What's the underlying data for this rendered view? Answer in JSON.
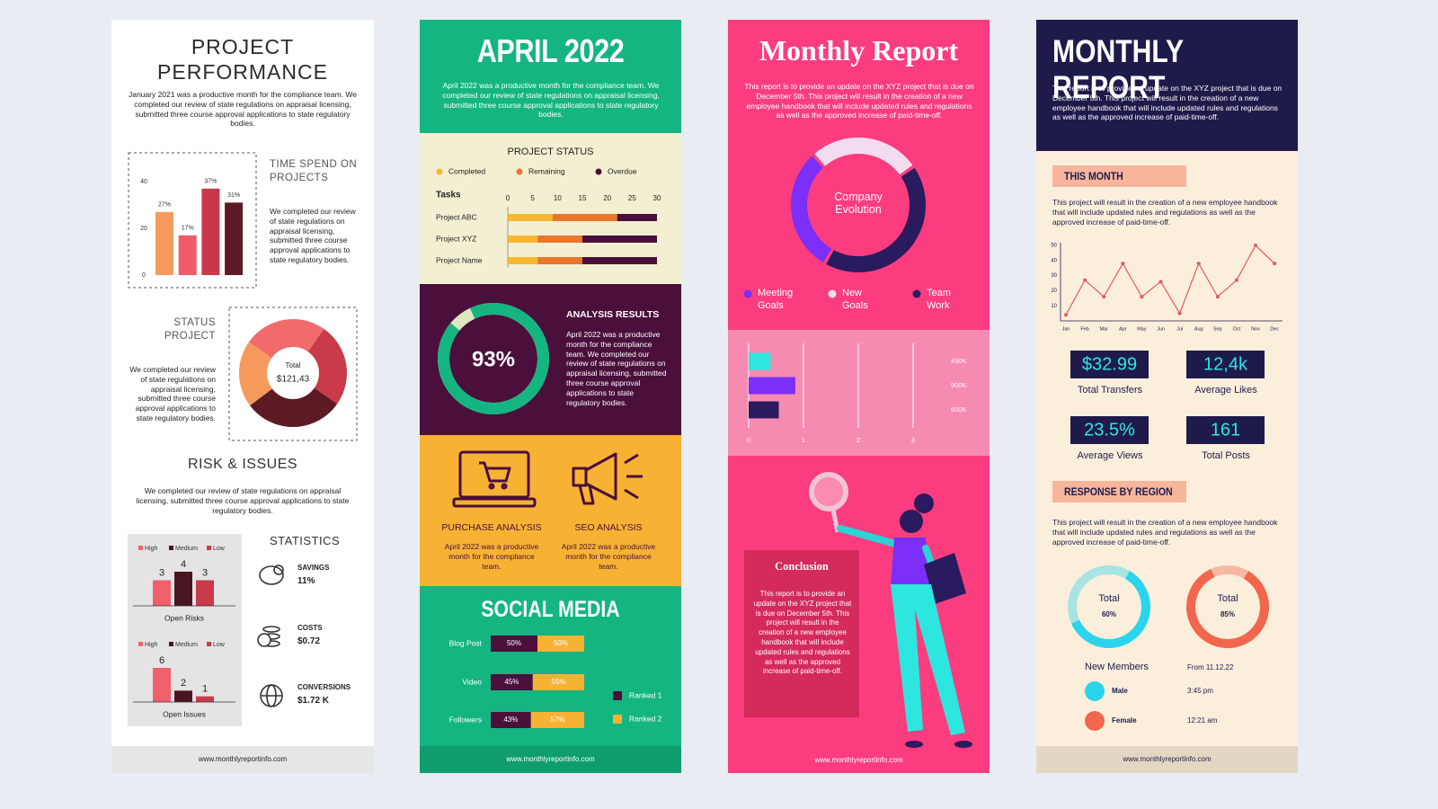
{
  "panels": [
    {
      "title": "PROJECT PERFORMANCE",
      "intro": "January 2021 was a productive month for the compliance team. We completed our review of state regulations on appraisal licensing, submitted three course approval applications to state regulatory bodies.",
      "time_chart": {
        "title": "TIME SPEND ON PROJECTS",
        "text": "We completed our review of state regulations on appraisal licensing, submitted three course approval applications to state regulatory bodies.",
        "values": [
          27,
          17,
          37,
          31
        ],
        "value_labels": [
          "27%",
          "17%",
          "37%",
          "31%"
        ],
        "colors": [
          "#f59a5c",
          "#f05b68",
          "#c7384a",
          "#5b1a24"
        ],
        "ylim": [
          0,
          40
        ],
        "yticks": [
          0,
          20,
          40
        ]
      },
      "status_chart": {
        "title": "STATUS PROJECT",
        "text": "We completed our review of state regulations on appraisal licensing, submitted three course approval applications to state regulatory bodies.",
        "center_label": "Total",
        "center_value": "$121,43",
        "values": [
          25,
          25,
          30,
          20
        ],
        "colors": [
          "#f26b6b",
          "#c93a4a",
          "#5b1a24",
          "#f59a5c"
        ]
      },
      "risk_title": "RISK & ISSUES",
      "risk_text": "We completed our review of state regulations on appraisal licensing, submitted three course approval applications to state regulatory bodies.",
      "risk_charts": [
        {
          "categories": [
            "High",
            "Medium",
            "Low"
          ],
          "colors": [
            "#f0606a",
            "#4a1520",
            "#c93a4a"
          ],
          "values": [
            3,
            4,
            3
          ],
          "label": "Open Risks"
        },
        {
          "categories": [
            "High",
            "Medium",
            "Low"
          ],
          "colors": [
            "#f0606a",
            "#4a1520",
            "#c93a4a"
          ],
          "values": [
            6,
            2,
            1
          ],
          "label": "Open Issues"
        }
      ],
      "statistics": {
        "title": "STATISTICS",
        "items": [
          {
            "label": "SAVINGS",
            "value": "11%"
          },
          {
            "label": "COSTS",
            "value": "$0.72"
          },
          {
            "label": "CONVERSIONS",
            "value": "$1.72 K"
          }
        ]
      },
      "footer": "www.monthlyreportinfo.com"
    },
    {
      "title": "APRIL 2022",
      "intro": "April 2022 was a productive month for the compliance team. We completed our review of state regulations on appraisal licensing, submitted three course approval applications to state regulatory bodies.",
      "status_chart": {
        "title": "PROJECT STATUS",
        "category_label": "Tasks",
        "categories": [
          "Project ABC",
          "Project XYZ",
          "Project Name"
        ],
        "series": [
          {
            "name": "Completed",
            "color": "#f7b733",
            "values": [
              9,
              6,
              6
            ]
          },
          {
            "name": "Remaining",
            "color": "#e8762b",
            "values": [
              13,
              9,
              9
            ]
          },
          {
            "name": "Overdue",
            "color": "#4a0f3b",
            "values": [
              8,
              15,
              15
            ]
          }
        ],
        "xlim": [
          0,
          30
        ],
        "xticks": [
          0,
          5,
          10,
          15,
          20,
          25,
          30
        ]
      },
      "analysis": {
        "title": "ANALYSIS RESULTS",
        "text": "April 2022 was a productive month for the compliance team. We completed our review of state regulations on appraisal licensing, submitted three course approval applications to state regulatory bodies.",
        "value": 93,
        "value_label": "93%",
        "color": "#14b581"
      },
      "features": [
        {
          "title": "PURCHASE ANALYSIS",
          "text": "April 2022 was a productive month for the compliance team."
        },
        {
          "title": "SEO ANALYSIS",
          "text": "April 2022 was a productive month for the compliance team."
        }
      ],
      "social_chart": {
        "title": "SOCIAL MEDIA",
        "categories": [
          "Blog Post",
          "Video",
          "Followers"
        ],
        "series": [
          {
            "name": "Ranked 1",
            "color": "#4a0f3b",
            "values": [
              50,
              45,
              43
            ],
            "value_labels": [
              "50%",
              "45%",
              "43%"
            ]
          },
          {
            "name": "Ranked 2",
            "color": "#f7b233",
            "values": [
              50,
              55,
              57
            ],
            "value_labels": [
              "50%",
              "55%",
              "57%"
            ]
          }
        ]
      },
      "footer": "www.monthlyreportinfo.com"
    },
    {
      "title": "Monthly Report",
      "intro": "This report is to provide an update on the XYZ project that is due on December 5th. This project will result in the creation of a new employee handbook that will include updated rules and regulations as well as the approved increase of paid-time-off.",
      "evolution_chart": {
        "center_label": "Company Evolution",
        "series": [
          {
            "name": "Meeting Goals",
            "color": "#7b2ff7",
            "value": 30
          },
          {
            "name": "New Goals",
            "color": "#f3dcef",
            "value": 27
          },
          {
            "name": "Team Work",
            "color": "#2a1a5e",
            "value": 43
          }
        ]
      },
      "bar_chart": {
        "categories": [
          "450K",
          "900K",
          "600K"
        ],
        "values": [
          0.4,
          0.85,
          0.55
        ],
        "colors": [
          "#2ee6e0",
          "#7b2ff7",
          "#2a1a5e"
        ],
        "xlim": [
          0,
          3
        ],
        "xticks": [
          0,
          1,
          2,
          3
        ]
      },
      "conclusion": {
        "title": "Conclusion",
        "text": "This report is to provide an update on the XYZ project that is due on December 5th. This project will result in the creation of a new employee handbook that will include updated rules and regulations as well as the approved increase of paid-time-off."
      },
      "footer": "www.monthlyreportinfo.com"
    },
    {
      "title": "MONTHLY REPORT",
      "intro": "This report is to provide an update on the XYZ project that is due on December 5th. This project will result in the creation of a new employee handbook that will include updated rules and regulations as well as the approved increase of paid-time-off.",
      "this_month": {
        "title": "THIS MONTH",
        "text": "This project will result in the creation of a new employee handbook that will include updated rules and regulations as well as the approved increase of paid-time-off."
      },
      "line_chart": {
        "categories": [
          "Jan",
          "Feb",
          "Mar",
          "Apr",
          "May",
          "Jun",
          "Jul",
          "Aug",
          "Sep",
          "Oct",
          "Nov",
          "Dec"
        ],
        "values": [
          4,
          27,
          16,
          38,
          16,
          26,
          5,
          38,
          16,
          27,
          50,
          38
        ],
        "color": "#e8575e",
        "ylim": [
          0,
          50
        ],
        "yticks": [
          10,
          20,
          30,
          40,
          50
        ]
      },
      "stats": [
        {
          "value": "$32.99",
          "label": "Total Transfers"
        },
        {
          "value": "12,4k",
          "label": "Average Likes"
        },
        {
          "value": "23.5%",
          "label": "Average Views"
        },
        {
          "value": 161,
          "label": "Total Posts"
        }
      ],
      "region": {
        "title": "RESPONSE BY REGION",
        "text": "This project will result in the creation of a new employee handbook that will include updated rules and regulations as well as the approved increase of paid-time-off.",
        "donuts": [
          {
            "label": "Total",
            "value": 60,
            "value_label": "60%",
            "color": "#2ad4ec"
          },
          {
            "label": "Total",
            "value": 85,
            "value_label": "85%",
            "color": "#f2664e"
          }
        ]
      },
      "members": {
        "title": "New Members",
        "date": "From 11.12.22",
        "items": [
          {
            "name": "Male",
            "time": "3:45 pm",
            "color": "#2ad4ec"
          },
          {
            "name": "Female",
            "time": "12:21 am",
            "color": "#f2664e"
          }
        ]
      },
      "footer": "www.monthlyreportinfo.com"
    }
  ]
}
